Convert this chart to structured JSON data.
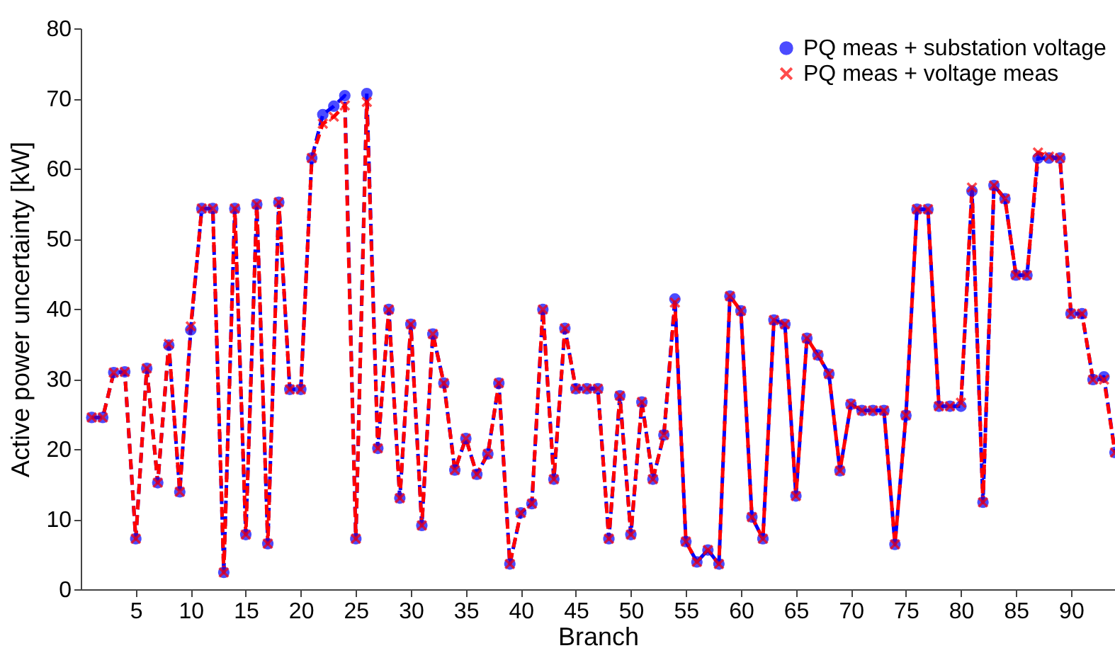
{
  "chart_data": {
    "type": "line",
    "xlabel": "Branch",
    "ylabel": "Active power uncertainty [kW]",
    "x": [
      1,
      2,
      3,
      4,
      5,
      6,
      7,
      8,
      9,
      10,
      11,
      12,
      13,
      14,
      15,
      16,
      17,
      18,
      19,
      20,
      21,
      22,
      23,
      24,
      25,
      26,
      27,
      28,
      29,
      30,
      31,
      32,
      33,
      34,
      35,
      36,
      37,
      38,
      39,
      40,
      41,
      42,
      43,
      44,
      45,
      46,
      47,
      48,
      49,
      50,
      51,
      52,
      53,
      54,
      55,
      56,
      57,
      58,
      59,
      60,
      61,
      62,
      63,
      64,
      65,
      66,
      67,
      68,
      69,
      70,
      71,
      72,
      73,
      74,
      75,
      76,
      77,
      78,
      79,
      80,
      81,
      82,
      83,
      84,
      85,
      86,
      87,
      88,
      89,
      90,
      91,
      92,
      93,
      94
    ],
    "series": [
      {
        "name": "PQ meas + substation voltage",
        "color": "#0000ff",
        "marker": "circle",
        "line_style": "dashed",
        "values": [
          24.5,
          24.5,
          30.9,
          31,
          7.2,
          31.5,
          15.2,
          34.8,
          13.9,
          37,
          54.3,
          54.3,
          2.4,
          54.3,
          7.8,
          54.9,
          6.5,
          55.2,
          28.5,
          28.5,
          61.5,
          67.7,
          68.9,
          70.4,
          7.2,
          70.7,
          20.1,
          39.9,
          13,
          37.8,
          9.1,
          36.4,
          29.4,
          17,
          21.5,
          16.4,
          19.3,
          29.4,
          3.6,
          10.9,
          12.2,
          39.9,
          15.7,
          37.2,
          28.6,
          28.6,
          28.6,
          7.2,
          27.6,
          7.8,
          26.7,
          15.7,
          22,
          41.4,
          6.8,
          3.9,
          5.6,
          3.6,
          41.8,
          39.7,
          10.3,
          7.2,
          38.4,
          37.8,
          13.3,
          35.8,
          33.4,
          30.7,
          16.9,
          26.4,
          25.5,
          25.5,
          25.5,
          6.4,
          24.8,
          54.2,
          54.2,
          26.1,
          26.1,
          26.1,
          56.8,
          12.4,
          57.6,
          55.7,
          44.8,
          44.8,
          61.5,
          61.5,
          61.5,
          39.3,
          39.3,
          29.9,
          30.3,
          19.5
        ]
      },
      {
        "name": "PQ meas + voltage meas",
        "color": "#ff0000",
        "marker": "cross",
        "line_style": "dashed",
        "values": [
          24.5,
          24.5,
          30.9,
          31,
          7.2,
          31.5,
          15.2,
          35,
          13.9,
          37.5,
          54.3,
          54.3,
          2.4,
          54.3,
          7.8,
          54.9,
          6.5,
          55.2,
          28.5,
          28.5,
          61.5,
          66.4,
          67.4,
          69,
          7.2,
          69.5,
          20.1,
          39.9,
          13,
          37.8,
          9.1,
          36.4,
          29.4,
          17,
          21.5,
          16.4,
          19.3,
          29.4,
          3.6,
          10.9,
          12.2,
          39.9,
          15.7,
          37.2,
          28.6,
          28.6,
          28.6,
          7.2,
          27.6,
          7.8,
          26.7,
          15.7,
          22,
          40.9,
          6.8,
          3.9,
          5.6,
          3.6,
          41.8,
          39.7,
          10.3,
          7.2,
          38.4,
          37.8,
          13.3,
          35.8,
          33.4,
          30.7,
          16.9,
          26.4,
          25.5,
          25.5,
          25.5,
          6.4,
          24.8,
          54.2,
          54.2,
          26.1,
          26.1,
          26.6,
          57.3,
          12.4,
          57.6,
          55.7,
          44.8,
          44.8,
          62.3,
          61.7,
          61.5,
          39.3,
          39.3,
          29.9,
          29.9,
          19.5
        ]
      }
    ],
    "xlim": [
      0,
      94
    ],
    "xticks": [
      5,
      10,
      15,
      20,
      25,
      30,
      35,
      40,
      45,
      50,
      55,
      60,
      65,
      70,
      75,
      80,
      85,
      90
    ],
    "ylim": [
      0,
      80
    ],
    "yticks": [
      0,
      10,
      20,
      30,
      40,
      50,
      60,
      70,
      80
    ],
    "grid": false,
    "legend": "top right"
  }
}
